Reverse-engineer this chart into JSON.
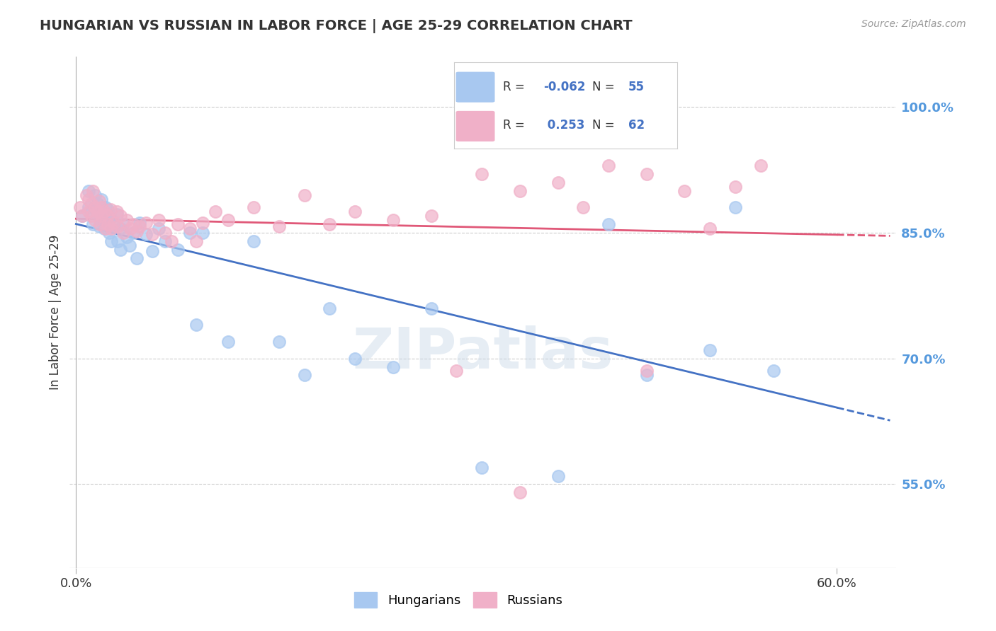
{
  "title": "HUNGARIAN VS RUSSIAN IN LABOR FORCE | AGE 25-29 CORRELATION CHART",
  "source": "Source: ZipAtlas.com",
  "ylabel": "In Labor Force | Age 25-29",
  "xlim": [
    0.0,
    0.6
  ],
  "ylim": [
    0.45,
    1.06
  ],
  "yticks": [
    0.55,
    0.7,
    0.85,
    1.0
  ],
  "ytick_labels": [
    "55.0%",
    "70.0%",
    "85.0%",
    "100.0%"
  ],
  "xticks": [
    0.0,
    0.6
  ],
  "xtick_labels": [
    "0.0%",
    "60.0%"
  ],
  "hungarian_color": "#a8c8f0",
  "russian_color": "#f0b0c8",
  "hungarian_line_color": "#4472c4",
  "russian_line_color": "#e05878",
  "hungarian_R": -0.062,
  "russian_R": 0.253,
  "hungarian_N": 55,
  "russian_N": 62,
  "hungarian_x": [
    0.005,
    0.01,
    0.01,
    0.012,
    0.013,
    0.015,
    0.015,
    0.017,
    0.018,
    0.018,
    0.02,
    0.02,
    0.02,
    0.022,
    0.022,
    0.023,
    0.025,
    0.025,
    0.026,
    0.027,
    0.028,
    0.03,
    0.032,
    0.033,
    0.035,
    0.035,
    0.037,
    0.04,
    0.042,
    0.045,
    0.048,
    0.05,
    0.055,
    0.06,
    0.065,
    0.07,
    0.08,
    0.09,
    0.095,
    0.1,
    0.12,
    0.14,
    0.16,
    0.18,
    0.2,
    0.22,
    0.25,
    0.28,
    0.32,
    0.38,
    0.42,
    0.45,
    0.5,
    0.52,
    0.55
  ],
  "hungarian_y": [
    0.87,
    0.88,
    0.9,
    0.875,
    0.86,
    0.895,
    0.88,
    0.885,
    0.872,
    0.858,
    0.865,
    0.875,
    0.89,
    0.87,
    0.855,
    0.88,
    0.862,
    0.878,
    0.85,
    0.868,
    0.84,
    0.858,
    0.872,
    0.84,
    0.855,
    0.83,
    0.86,
    0.845,
    0.835,
    0.85,
    0.82,
    0.862,
    0.848,
    0.828,
    0.855,
    0.84,
    0.83,
    0.85,
    0.74,
    0.85,
    0.72,
    0.84,
    0.72,
    0.68,
    0.76,
    0.7,
    0.69,
    0.76,
    0.57,
    0.56,
    0.86,
    0.68,
    0.71,
    0.88,
    0.685
  ],
  "russian_x": [
    0.003,
    0.005,
    0.008,
    0.01,
    0.01,
    0.012,
    0.012,
    0.013,
    0.015,
    0.015,
    0.017,
    0.018,
    0.019,
    0.02,
    0.02,
    0.022,
    0.023,
    0.025,
    0.025,
    0.027,
    0.028,
    0.03,
    0.032,
    0.033,
    0.035,
    0.037,
    0.04,
    0.043,
    0.045,
    0.048,
    0.05,
    0.055,
    0.06,
    0.065,
    0.07,
    0.075,
    0.08,
    0.09,
    0.095,
    0.1,
    0.11,
    0.12,
    0.14,
    0.16,
    0.18,
    0.2,
    0.22,
    0.25,
    0.28,
    0.32,
    0.35,
    0.38,
    0.4,
    0.42,
    0.45,
    0.48,
    0.5,
    0.52,
    0.54,
    0.3,
    0.35,
    0.45
  ],
  "russian_y": [
    0.88,
    0.87,
    0.895,
    0.875,
    0.89,
    0.885,
    0.87,
    0.9,
    0.88,
    0.865,
    0.875,
    0.888,
    0.86,
    0.88,
    0.87,
    0.875,
    0.855,
    0.87,
    0.86,
    0.878,
    0.855,
    0.862,
    0.875,
    0.858,
    0.87,
    0.85,
    0.865,
    0.855,
    0.86,
    0.852,
    0.858,
    0.862,
    0.848,
    0.865,
    0.85,
    0.84,
    0.86,
    0.855,
    0.84,
    0.862,
    0.875,
    0.865,
    0.88,
    0.858,
    0.895,
    0.86,
    0.875,
    0.865,
    0.87,
    0.92,
    0.9,
    0.91,
    0.88,
    0.93,
    0.92,
    0.9,
    0.855,
    0.905,
    0.93,
    0.685,
    0.54,
    0.685
  ]
}
